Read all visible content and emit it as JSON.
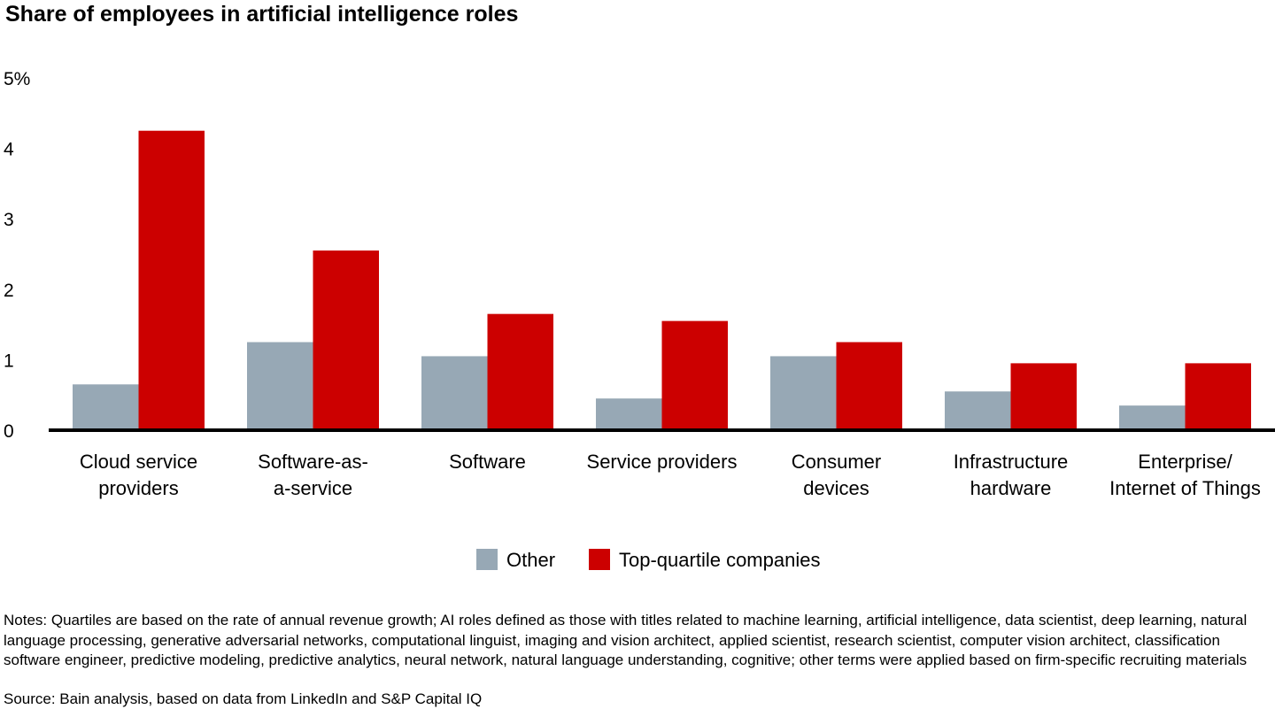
{
  "chart_data": {
    "type": "bar",
    "title": "Share of employees in artificial intelligence roles",
    "ylabel": "",
    "xlabel": "",
    "ylim": [
      0,
      5
    ],
    "yticks": [
      "0",
      "1",
      "2",
      "3",
      "4",
      "5%"
    ],
    "grid": false,
    "legend_position": "bottom",
    "categories": [
      [
        "Cloud service",
        "providers"
      ],
      [
        "Software-as-",
        "a-service"
      ],
      [
        "Software"
      ],
      [
        "Service providers"
      ],
      [
        "Consumer",
        "devices"
      ],
      [
        "Infrastructure",
        "hardware"
      ],
      [
        "Enterprise/",
        "Internet of Things"
      ]
    ],
    "series": [
      {
        "name": "Other",
        "color": "#97A8B5",
        "values": [
          0.65,
          1.25,
          1.05,
          0.45,
          1.05,
          0.55,
          0.35
        ]
      },
      {
        "name": "Top-quartile companies",
        "color": "#CC0000",
        "values": [
          4.25,
          2.55,
          1.65,
          1.55,
          1.25,
          0.95,
          0.95
        ]
      }
    ]
  },
  "notes": "Notes: Quartiles are based on the rate of annual revenue growth; AI roles defined as those with titles related to machine learning, artificial intelligence, data scientist, deep learning, natural language processing, generative adversarial networks, computational linguist, imaging and vision architect, applied scientist, research scientist, computer vision architect, classification software engineer, predictive modeling, predictive analytics, neural network, natural language understanding, cognitive; other terms were applied based on firm-specific recruiting materials",
  "source": "Source: Bain analysis, based on data from LinkedIn and S&P Capital IQ"
}
